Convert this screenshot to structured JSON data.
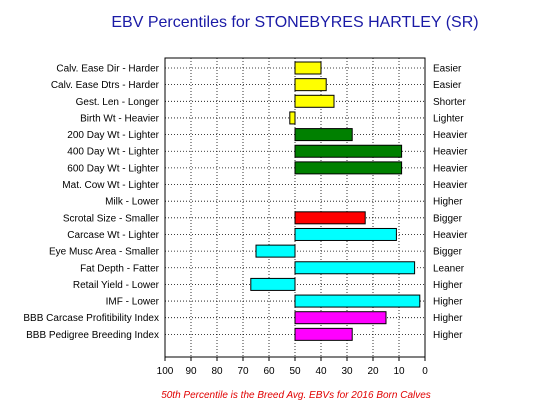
{
  "chart_data": {
    "type": "bar",
    "title": "EBV Percentiles for STONEBYRES HARTLEY (SR)",
    "footnote": "50th Percentile is the Breed Avg. EBVs for 2016 Born Calves",
    "baseline": 50,
    "xlim": [
      100,
      0
    ],
    "x_ticks": [
      100,
      90,
      80,
      70,
      60,
      50,
      40,
      30,
      20,
      10,
      0
    ],
    "grid": true,
    "colors": {
      "title": "#1a1aa6",
      "footnote": "#e00000",
      "yellow": "#ffff00",
      "green": "#008000",
      "red": "#ff0000",
      "cyan": "#00ffff",
      "magenta": "#ff00ff"
    },
    "traits": [
      {
        "left": "Calv. Ease Dir - Harder",
        "right": "Easier",
        "value": 40,
        "color": "#ffff00"
      },
      {
        "left": "Calv. Ease Dtrs - Harder",
        "right": "Easier",
        "value": 38,
        "color": "#ffff00"
      },
      {
        "left": "Gest. Len - Longer",
        "right": "Shorter",
        "value": 35,
        "color": "#ffff00"
      },
      {
        "left": "Birth Wt - Heavier",
        "right": "Lighter",
        "value": 52,
        "color": "#ffff00"
      },
      {
        "left": "200 Day Wt - Lighter",
        "right": "Heavier",
        "value": 28,
        "color": "#008000"
      },
      {
        "left": "400 Day Wt - Lighter",
        "right": "Heavier",
        "value": 9,
        "color": "#008000"
      },
      {
        "left": "600 Day Wt - Lighter",
        "right": "Heavier",
        "value": 9,
        "color": "#008000"
      },
      {
        "left": "Mat. Cow Wt - Lighter",
        "right": "Heavier",
        "value": null,
        "color": "#008000"
      },
      {
        "left": "Milk - Lower",
        "right": "Higher",
        "value": null,
        "color": "#008000"
      },
      {
        "left": "Scrotal Size - Smaller",
        "right": "Bigger",
        "value": 23,
        "color": "#ff0000"
      },
      {
        "left": "Carcase Wt - Lighter",
        "right": "Heavier",
        "value": 11,
        "color": "#00ffff"
      },
      {
        "left": "Eye Musc Area - Smaller",
        "right": "Bigger",
        "value": 65,
        "color": "#00ffff"
      },
      {
        "left": "Fat Depth - Fatter",
        "right": "Leaner",
        "value": 4,
        "color": "#00ffff"
      },
      {
        "left": "Retail Yield - Lower",
        "right": "Higher",
        "value": 67,
        "color": "#00ffff"
      },
      {
        "left": "IMF - Lower",
        "right": "Higher",
        "value": 2,
        "color": "#00ffff"
      },
      {
        "left": "BBB Carcase Profitibility Index",
        "right": "Higher",
        "value": 15,
        "color": "#ff00ff"
      },
      {
        "left": "BBB Pedigree Breeding Index",
        "right": "Higher",
        "value": 28,
        "color": "#ff00ff"
      }
    ]
  }
}
